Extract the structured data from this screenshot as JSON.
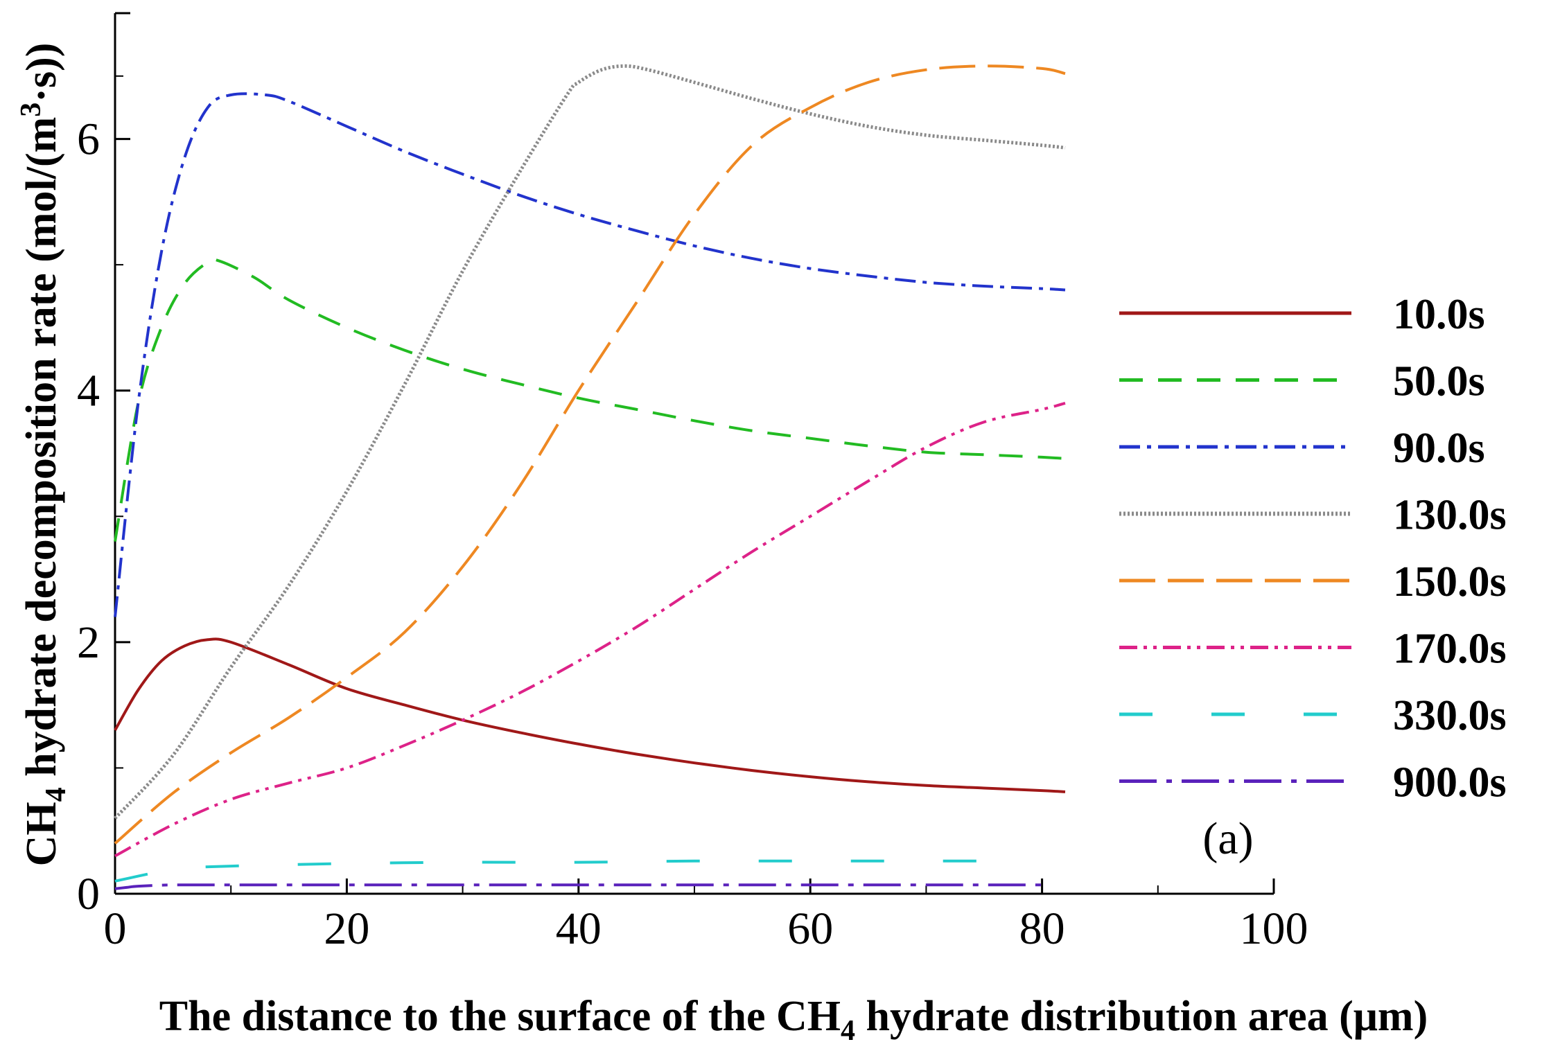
{
  "chart_data": {
    "type": "line",
    "title": "",
    "xlabel": {
      "prefix": "The distance to the surface of the CH",
      "sub": "4",
      "suffix": " hydrate distribution area (μm)"
    },
    "ylabel": {
      "prefix": "CH",
      "sub": "4",
      "mid": " hydrate decomposition rate (mol/(m",
      "sup": "3",
      "suffix": "·s))"
    },
    "xlim": [
      0,
      100
    ],
    "ylim": [
      0,
      7
    ],
    "xticks": [
      0,
      20,
      40,
      60,
      80,
      100
    ],
    "yticks": [
      0,
      2,
      4,
      6
    ],
    "xtick_labels": [
      "0",
      "20",
      "40",
      "60",
      "80",
      "100"
    ],
    "ytick_labels": [
      "0",
      "2",
      "4",
      "6"
    ],
    "annotation": "(a)",
    "legend_position": "right",
    "series": [
      {
        "name": "10.0s",
        "color": "#a01818",
        "dash": "solid",
        "x": [
          0,
          2,
          4,
          6,
          8,
          10,
          15,
          20,
          25,
          30,
          35,
          40,
          45,
          50,
          55,
          60,
          65,
          70,
          75,
          80,
          82
        ],
        "y": [
          1.3,
          1.62,
          1.85,
          1.97,
          2.02,
          2.0,
          1.82,
          1.63,
          1.5,
          1.38,
          1.28,
          1.19,
          1.11,
          1.04,
          0.98,
          0.93,
          0.89,
          0.86,
          0.84,
          0.82,
          0.81
        ]
      },
      {
        "name": "50.0s",
        "color": "#22bb22",
        "dash": "dashed",
        "x": [
          0,
          2,
          4,
          6,
          8,
          9,
          12,
          15,
          20,
          25,
          30,
          35,
          40,
          45,
          50,
          55,
          60,
          65,
          70,
          75,
          80,
          82
        ],
        "y": [
          2.8,
          3.9,
          4.5,
          4.85,
          5.02,
          5.03,
          4.9,
          4.72,
          4.5,
          4.32,
          4.17,
          4.05,
          3.94,
          3.85,
          3.76,
          3.68,
          3.62,
          3.56,
          3.51,
          3.49,
          3.47,
          3.46
        ]
      },
      {
        "name": "90.0s",
        "color": "#2233cc",
        "dash": "dash-dot",
        "x": [
          0,
          2,
          4,
          6,
          8,
          10,
          13,
          15,
          20,
          25,
          30,
          35,
          40,
          45,
          50,
          55,
          60,
          65,
          70,
          75,
          80,
          82
        ],
        "y": [
          2.2,
          3.9,
          5.1,
          5.85,
          6.25,
          6.35,
          6.35,
          6.3,
          6.1,
          5.9,
          5.72,
          5.55,
          5.4,
          5.27,
          5.15,
          5.05,
          4.97,
          4.91,
          4.86,
          4.83,
          4.81,
          4.8
        ]
      },
      {
        "name": "130.0s",
        "color": "#8a8a8a",
        "dash": "dotted",
        "x": [
          0,
          5,
          10,
          15,
          20,
          25,
          30,
          35,
          39,
          40,
          42,
          44,
          46,
          50,
          55,
          60,
          65,
          70,
          75,
          80,
          82
        ],
        "y": [
          0.6,
          1.1,
          1.8,
          2.45,
          3.2,
          4.05,
          4.95,
          5.75,
          6.35,
          6.45,
          6.55,
          6.58,
          6.55,
          6.45,
          6.32,
          6.2,
          6.1,
          6.03,
          5.99,
          5.95,
          5.93
        ]
      },
      {
        "name": "150.0s",
        "color": "#ee8822",
        "dash": "long-dash",
        "x": [
          0,
          5,
          10,
          15,
          20,
          25,
          30,
          35,
          40,
          45,
          50,
          55,
          60,
          65,
          70,
          75,
          80,
          82
        ],
        "y": [
          0.4,
          0.8,
          1.12,
          1.4,
          1.72,
          2.08,
          2.6,
          3.25,
          4.0,
          4.7,
          5.4,
          5.95,
          6.25,
          6.45,
          6.55,
          6.58,
          6.56,
          6.52
        ]
      },
      {
        "name": "170.0s",
        "color": "#dd2288",
        "dash": "dash-dot-dot",
        "x": [
          0,
          5,
          10,
          15,
          20,
          25,
          30,
          35,
          40,
          45,
          50,
          55,
          60,
          65,
          70,
          75,
          80,
          82
        ],
        "y": [
          0.3,
          0.55,
          0.75,
          0.88,
          1.0,
          1.18,
          1.38,
          1.6,
          1.85,
          2.12,
          2.42,
          2.72,
          3.0,
          3.28,
          3.55,
          3.75,
          3.85,
          3.9
        ]
      },
      {
        "name": "330.0s",
        "color": "#22cccc",
        "dash": "sparse-dash",
        "x": [
          0,
          2,
          4,
          5,
          10,
          20,
          30,
          40,
          50,
          60,
          70,
          78
        ],
        "y": [
          0.1,
          0.14,
          0.18,
          0.2,
          0.22,
          0.24,
          0.25,
          0.25,
          0.26,
          0.26,
          0.26,
          0.26
        ]
      },
      {
        "name": "900.0s",
        "color": "#5a22bb",
        "dash": "long-dash-dot",
        "x": [
          0,
          1,
          2,
          5,
          10,
          20,
          30,
          40,
          50,
          60,
          70,
          80
        ],
        "y": [
          0.04,
          0.05,
          0.06,
          0.07,
          0.07,
          0.07,
          0.07,
          0.07,
          0.07,
          0.07,
          0.07,
          0.07
        ]
      }
    ]
  }
}
